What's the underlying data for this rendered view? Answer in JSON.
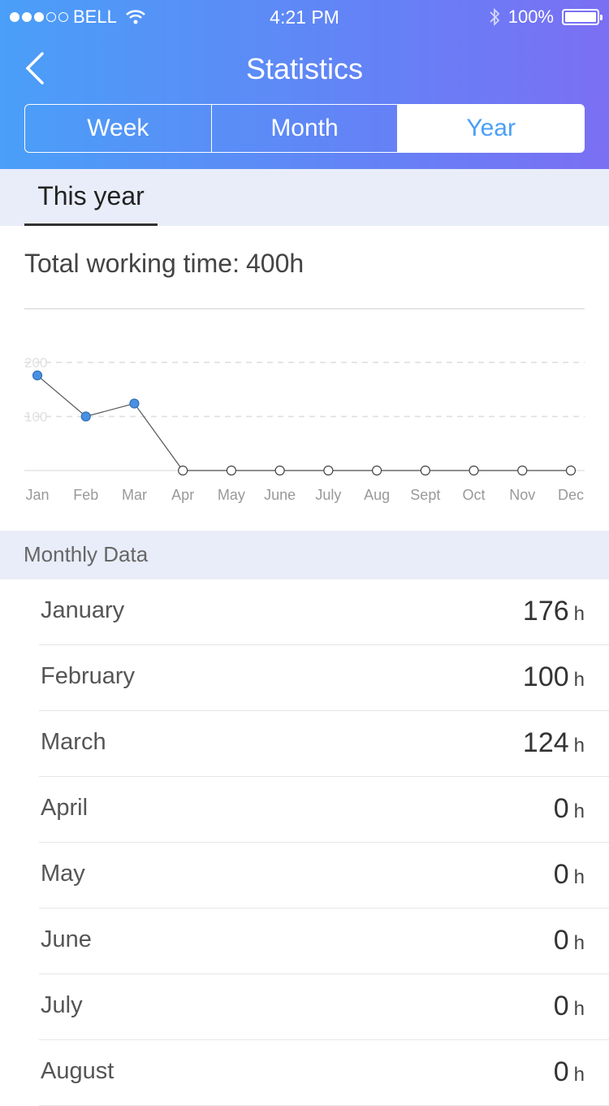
{
  "status_bar": {
    "carrier": "BELL",
    "time": "4:21 PM",
    "battery": "100%"
  },
  "nav": {
    "title": "Statistics"
  },
  "segments": [
    {
      "label": "Week",
      "active": false
    },
    {
      "label": "Month",
      "active": false
    },
    {
      "label": "Year",
      "active": true
    }
  ],
  "period_tab": "This year",
  "total": {
    "label": "Total working time:",
    "value": "400h"
  },
  "chart_data": {
    "type": "line",
    "categories": [
      "Jan",
      "Feb",
      "Mar",
      "Apr",
      "May",
      "June",
      "July",
      "Aug",
      "Sept",
      "Oct",
      "Nov",
      "Dec"
    ],
    "values": [
      176,
      100,
      124,
      0,
      0,
      0,
      0,
      0,
      0,
      0,
      0,
      0
    ],
    "yticks": [
      100,
      200
    ],
    "ylim": [
      0,
      200
    ],
    "grid": true,
    "colors": {
      "filled_point": "#4a90e2",
      "line": "#555555",
      "grid": "#dddddd"
    }
  },
  "section_title": "Monthly Data",
  "unit": "h",
  "months": [
    {
      "name": "January",
      "value": "176"
    },
    {
      "name": "February",
      "value": "100"
    },
    {
      "name": "March",
      "value": "124"
    },
    {
      "name": "April",
      "value": "0"
    },
    {
      "name": "May",
      "value": "0"
    },
    {
      "name": "June",
      "value": "0"
    },
    {
      "name": "July",
      "value": "0"
    },
    {
      "name": "August",
      "value": "0"
    }
  ]
}
